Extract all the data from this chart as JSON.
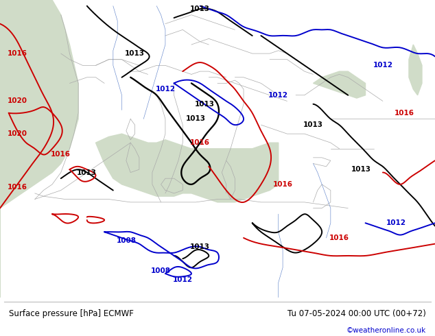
{
  "title_left": "Surface pressure [hPa] ECMWF",
  "title_right": "Tu 07-05-2024 00:00 UTC (00+72)",
  "copyright": "©weatheronline.co.uk",
  "land_color": "#b8d898",
  "sea_color": "#d8e8d0",
  "footer_bg": "#ffffff",
  "footer_text_color": "#000000",
  "copyright_color": "#0000cc",
  "figsize": [
    6.34,
    4.9
  ],
  "dpi": 100,
  "border_color": "#aaaaaa",
  "river_color": "#6688cc",
  "black_lw": 1.4,
  "red_lw": 1.4,
  "blue_lw": 1.4,
  "border_lw": 0.5,
  "label_fontsize": 7.5
}
